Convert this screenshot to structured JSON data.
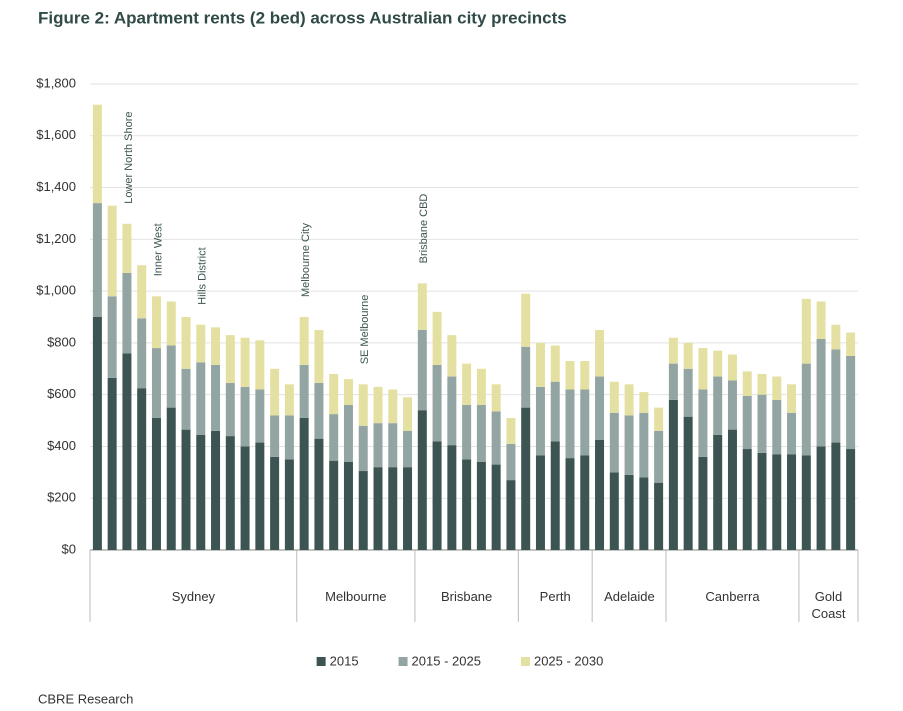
{
  "chart_data": {
    "type": "stacked_bar",
    "title": "Figure 2:  Apartment rents (2 bed) across Australian city precincts",
    "source": "CBRE Research",
    "categories": [
      null,
      null,
      "Lower North Shore",
      null,
      "Inner West",
      null,
      null,
      "Hills District",
      null,
      null,
      null,
      null,
      null,
      null,
      "Melbourne City",
      null,
      null,
      null,
      "SE Melbourne",
      null,
      null,
      null,
      "Brisbane CBD",
      null,
      null,
      null,
      null,
      null,
      null,
      null,
      null,
      null,
      null,
      null,
      null,
      null,
      null,
      null,
      null,
      null,
      null,
      null,
      null,
      null,
      null,
      null,
      null,
      null,
      null,
      null,
      null,
      null
    ],
    "groups": [
      "Sydney",
      "Sydney",
      "Sydney",
      "Sydney",
      "Sydney",
      "Sydney",
      "Sydney",
      "Sydney",
      "Sydney",
      "Sydney",
      "Sydney",
      "Sydney",
      "Sydney",
      "Sydney",
      "Melbourne",
      "Melbourne",
      "Melbourne",
      "Melbourne",
      "Melbourne",
      "Melbourne",
      "Melbourne",
      "Melbourne",
      "Brisbane",
      "Brisbane",
      "Brisbane",
      "Brisbane",
      "Brisbane",
      "Brisbane",
      "Brisbane",
      "Perth",
      "Perth",
      "Perth",
      "Perth",
      "Perth",
      "Adelaide",
      "Adelaide",
      "Adelaide",
      "Adelaide",
      "Adelaide",
      "Canberra",
      "Canberra",
      "Canberra",
      "Canberra",
      "Canberra",
      "Canberra",
      "Canberra",
      "Canberra",
      "Canberra",
      "Gold Coast",
      "Gold Coast",
      "Gold Coast",
      "Gold Coast"
    ],
    "series": [
      {
        "name": "2015",
        "color": "#3c5552",
        "values": [
          900,
          665,
          760,
          625,
          510,
          550,
          465,
          445,
          460,
          440,
          400,
          415,
          360,
          350,
          510,
          430,
          345,
          340,
          305,
          320,
          320,
          320,
          540,
          420,
          405,
          350,
          340,
          330,
          270,
          550,
          365,
          420,
          355,
          365,
          425,
          300,
          290,
          280,
          260,
          580,
          515,
          360,
          445,
          465,
          390,
          375,
          370,
          370,
          365,
          400,
          415,
          390
        ]
      },
      {
        "name": "2015 - 2025",
        "color": "#93a5a2",
        "values": [
          440,
          315,
          310,
          270,
          270,
          240,
          235,
          280,
          255,
          205,
          230,
          205,
          160,
          170,
          205,
          215,
          180,
          220,
          175,
          170,
          170,
          140,
          310,
          295,
          265,
          210,
          220,
          205,
          140,
          235,
          265,
          230,
          265,
          255,
          245,
          230,
          230,
          250,
          200,
          140,
          185,
          260,
          225,
          190,
          205,
          225,
          210,
          160,
          355,
          415,
          360,
          360
        ]
      },
      {
        "name": "2025 - 2030",
        "color": "#e4e0a2",
        "values": [
          380,
          350,
          190,
          205,
          200,
          170,
          200,
          145,
          145,
          185,
          190,
          190,
          180,
          120,
          185,
          205,
          155,
          100,
          160,
          140,
          130,
          130,
          180,
          205,
          160,
          160,
          140,
          105,
          100,
          205,
          170,
          140,
          110,
          110,
          180,
          120,
          120,
          80,
          90,
          100,
          100,
          160,
          100,
          100,
          95,
          80,
          90,
          110,
          250,
          145,
          95,
          90
        ]
      }
    ],
    "ylim": [
      0,
      1800
    ],
    "yticks": [
      {
        "value": 0,
        "label": "$0"
      },
      {
        "value": 200,
        "label": "$200"
      },
      {
        "value": 400,
        "label": "$400"
      },
      {
        "value": 600,
        "label": "$600"
      },
      {
        "value": 800,
        "label": "$800"
      },
      {
        "value": 1000,
        "label": "$1,000"
      },
      {
        "value": 1200,
        "label": "$1,200"
      },
      {
        "value": 1400,
        "label": "$1,400"
      },
      {
        "value": 1600,
        "label": "$1,600"
      },
      {
        "value": 1800,
        "label": "$1,800"
      }
    ],
    "grid": true
  }
}
